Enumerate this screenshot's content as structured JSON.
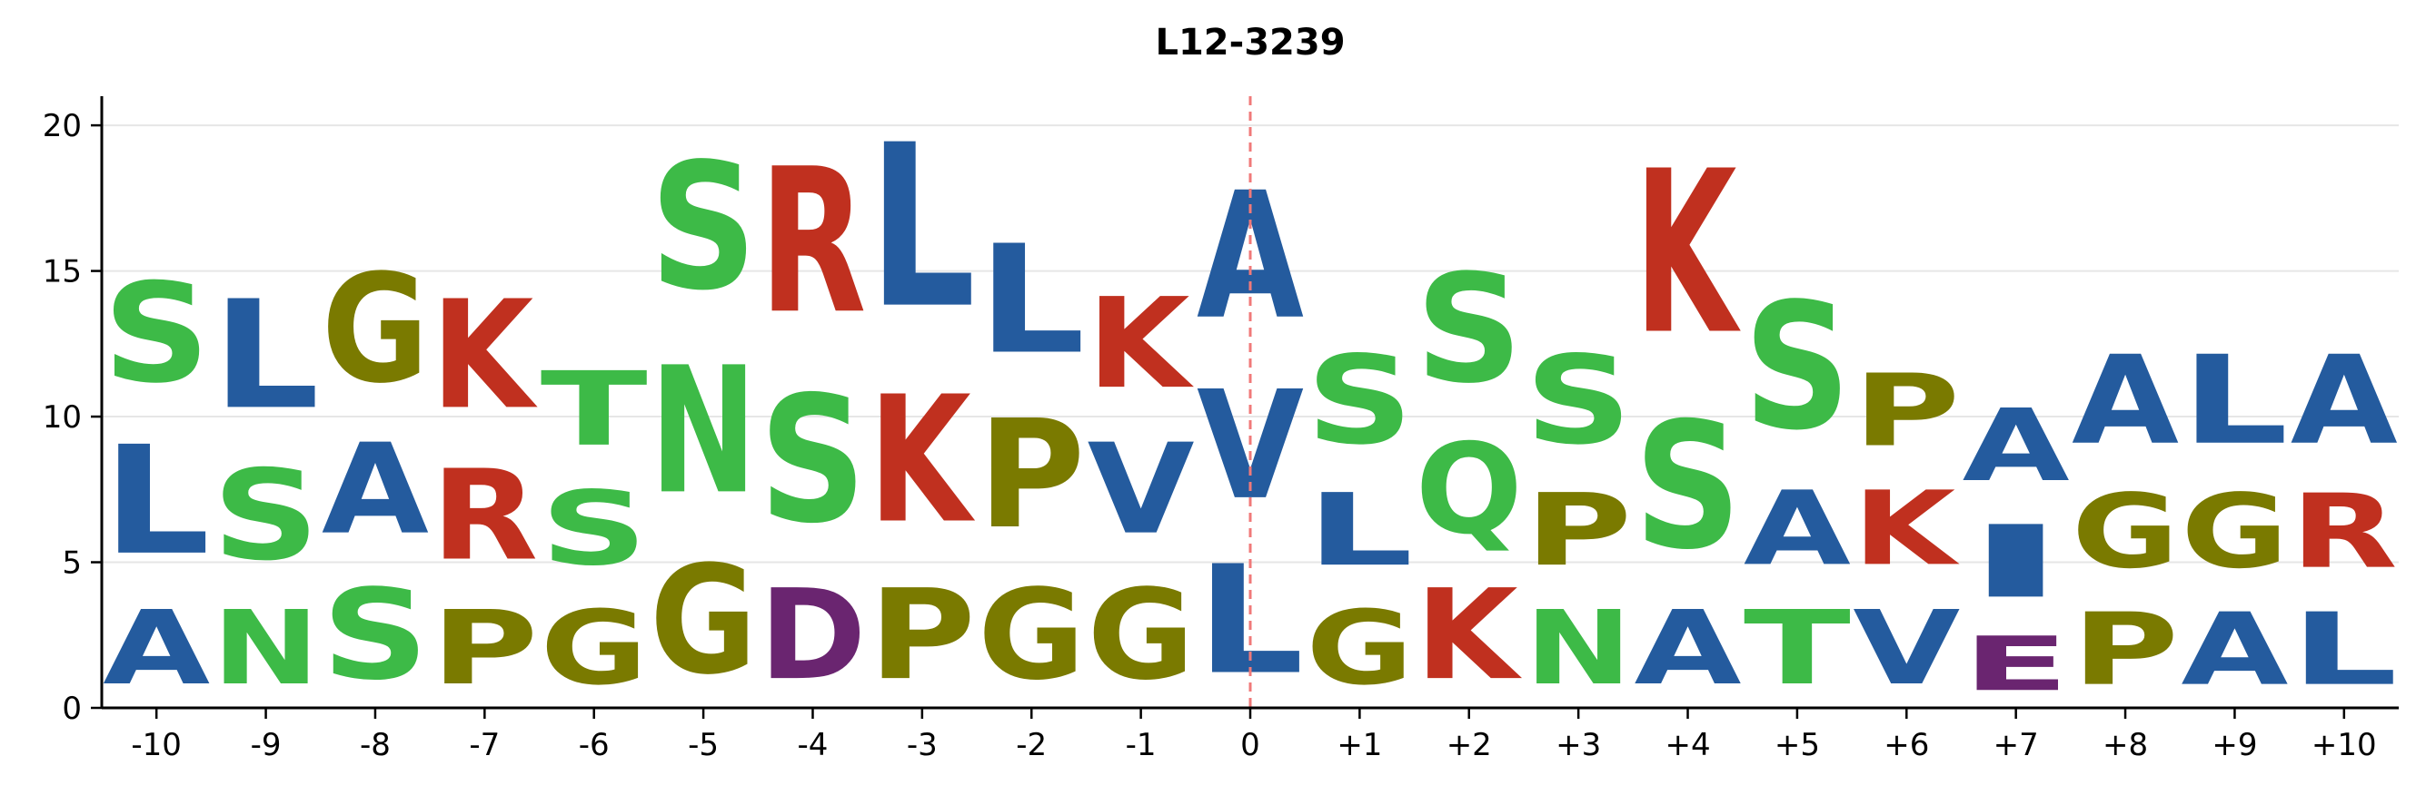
{
  "chart_data": {
    "type": "sequence-logo",
    "title": "L12-3239",
    "xlabel": "",
    "ylabel": "",
    "ylim": [
      0,
      21
    ],
    "yticks": [
      0,
      5,
      10,
      15,
      20
    ],
    "grid": "horizontal",
    "center_marker": {
      "position": "0",
      "style": "dashed",
      "color": "#f07a7a"
    },
    "colors": {
      "blue": "#245b9e",
      "green": "#3dba47",
      "olive": "#7a7a00",
      "red": "#c0301f",
      "purple": "#6a2570"
    },
    "positions": [
      {
        "label": "-10",
        "stack": [
          {
            "letter": "A",
            "height": 4.1,
            "color": "blue"
          },
          {
            "letter": "L",
            "height": 6.0,
            "color": "blue"
          },
          {
            "letter": "S",
            "height": 5.5,
            "color": "green"
          }
        ]
      },
      {
        "label": "-9",
        "stack": [
          {
            "letter": "N",
            "height": 4.1,
            "color": "green"
          },
          {
            "letter": "S",
            "height": 5.0,
            "color": "green"
          },
          {
            "letter": "L",
            "height": 6.0,
            "color": "blue"
          }
        ]
      },
      {
        "label": "-8",
        "stack": [
          {
            "letter": "S",
            "height": 5.0,
            "color": "green"
          },
          {
            "letter": "A",
            "height": 5.0,
            "color": "blue"
          },
          {
            "letter": "G",
            "height": 6.0,
            "color": "olive"
          }
        ]
      },
      {
        "label": "-7",
        "stack": [
          {
            "letter": "P",
            "height": 4.1,
            "color": "olive"
          },
          {
            "letter": "R",
            "height": 5.0,
            "color": "red"
          },
          {
            "letter": "K",
            "height": 6.0,
            "color": "red"
          }
        ]
      },
      {
        "label": "-6",
        "stack": [
          {
            "letter": "G",
            "height": 4.1,
            "color": "olive"
          },
          {
            "letter": "S",
            "height": 4.1,
            "color": "green"
          },
          {
            "letter": "T",
            "height": 4.1,
            "color": "green"
          }
        ]
      },
      {
        "label": "-5",
        "stack": [
          {
            "letter": "G",
            "height": 6.0,
            "color": "olive"
          },
          {
            "letter": "N",
            "height": 7.0,
            "color": "green"
          },
          {
            "letter": "S",
            "height": 7.0,
            "color": "green"
          }
        ]
      },
      {
        "label": "-4",
        "stack": [
          {
            "letter": "D",
            "height": 5.0,
            "color": "purple"
          },
          {
            "letter": "S",
            "height": 7.0,
            "color": "green"
          },
          {
            "letter": "R",
            "height": 8.0,
            "color": "red"
          }
        ]
      },
      {
        "label": "-3",
        "stack": [
          {
            "letter": "P",
            "height": 5.0,
            "color": "olive"
          },
          {
            "letter": "K",
            "height": 7.0,
            "color": "red"
          },
          {
            "letter": "L",
            "height": 9.0,
            "color": "blue"
          }
        ]
      },
      {
        "label": "-2",
        "stack": [
          {
            "letter": "G",
            "height": 5.0,
            "color": "olive"
          },
          {
            "letter": "P",
            "height": 6.0,
            "color": "olive"
          },
          {
            "letter": "L",
            "height": 6.0,
            "color": "blue"
          }
        ]
      },
      {
        "label": "-1",
        "stack": [
          {
            "letter": "G",
            "height": 5.0,
            "color": "olive"
          },
          {
            "letter": "V",
            "height": 5.0,
            "color": "blue"
          },
          {
            "letter": "K",
            "height": 5.0,
            "color": "red"
          }
        ]
      },
      {
        "label": "0",
        "stack": [
          {
            "letter": "L",
            "height": 6.0,
            "color": "blue"
          },
          {
            "letter": "V",
            "height": 6.0,
            "color": "blue"
          },
          {
            "letter": "A",
            "height": 7.0,
            "color": "blue"
          }
        ]
      },
      {
        "label": "+1",
        "stack": [
          {
            "letter": "G",
            "height": 4.1,
            "color": "olive"
          },
          {
            "letter": "L",
            "height": 4.0,
            "color": "blue"
          },
          {
            "letter": "S",
            "height": 4.9,
            "color": "green"
          }
        ]
      },
      {
        "label": "+2",
        "stack": [
          {
            "letter": "K",
            "height": 5.0,
            "color": "red"
          },
          {
            "letter": "Q",
            "height": 5.0,
            "color": "green"
          },
          {
            "letter": "S",
            "height": 6.0,
            "color": "green"
          }
        ]
      },
      {
        "label": "+3",
        "stack": [
          {
            "letter": "N",
            "height": 4.1,
            "color": "green"
          },
          {
            "letter": "P",
            "height": 4.0,
            "color": "olive"
          },
          {
            "letter": "S",
            "height": 4.9,
            "color": "green"
          }
        ]
      },
      {
        "label": "+4",
        "stack": [
          {
            "letter": "A",
            "height": 4.1,
            "color": "blue"
          },
          {
            "letter": "S",
            "height": 7.0,
            "color": "green"
          },
          {
            "letter": "K",
            "height": 9.0,
            "color": "red"
          }
        ]
      },
      {
        "label": "+5",
        "stack": [
          {
            "letter": "T",
            "height": 4.1,
            "color": "green"
          },
          {
            "letter": "A",
            "height": 4.1,
            "color": "blue"
          },
          {
            "letter": "S",
            "height": 7.0,
            "color": "green"
          }
        ]
      },
      {
        "label": "+6",
        "stack": [
          {
            "letter": "V",
            "height": 4.1,
            "color": "blue"
          },
          {
            "letter": "K",
            "height": 4.1,
            "color": "red"
          },
          {
            "letter": "P",
            "height": 4.0,
            "color": "olive"
          }
        ]
      },
      {
        "label": "+7",
        "stack": [
          {
            "letter": "E",
            "height": 3.0,
            "color": "purple"
          },
          {
            "letter": "I",
            "height": 4.0,
            "color": "blue"
          },
          {
            "letter": "A",
            "height": 4.0,
            "color": "blue"
          }
        ]
      },
      {
        "label": "+8",
        "stack": [
          {
            "letter": "P",
            "height": 4.0,
            "color": "olive"
          },
          {
            "letter": "G",
            "height": 4.1,
            "color": "olive"
          },
          {
            "letter": "A",
            "height": 4.9,
            "color": "blue"
          }
        ]
      },
      {
        "label": "+9",
        "stack": [
          {
            "letter": "A",
            "height": 4.0,
            "color": "blue"
          },
          {
            "letter": "G",
            "height": 4.1,
            "color": "olive"
          },
          {
            "letter": "L",
            "height": 4.9,
            "color": "blue"
          }
        ]
      },
      {
        "label": "+10",
        "stack": [
          {
            "letter": "L",
            "height": 4.0,
            "color": "blue"
          },
          {
            "letter": "R",
            "height": 4.1,
            "color": "red"
          },
          {
            "letter": "A",
            "height": 4.9,
            "color": "blue"
          }
        ]
      }
    ]
  }
}
